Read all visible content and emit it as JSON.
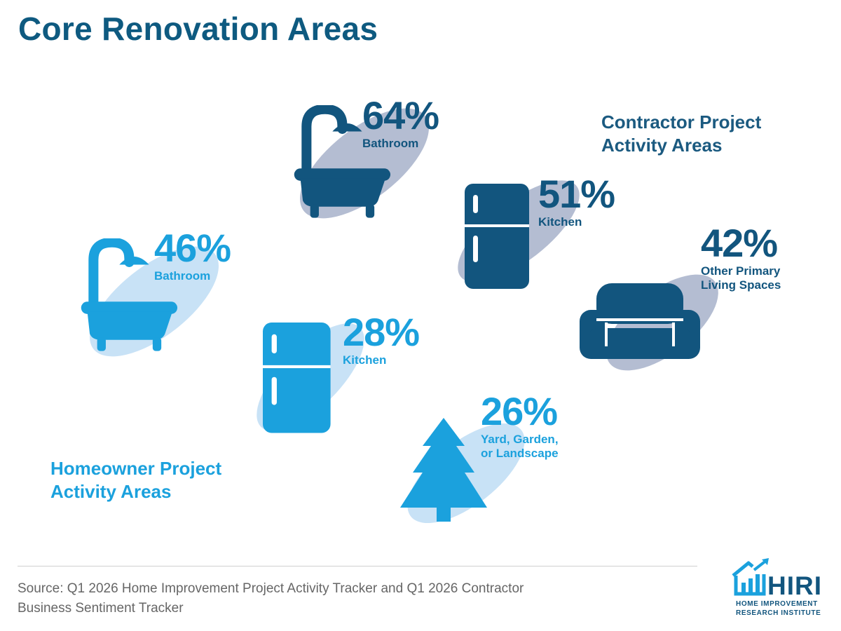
{
  "title": "Core Renovation Areas",
  "colors": {
    "contractor": "#12557e",
    "homeowner": "#1ba1dd",
    "contractor_shadow": "#b4bdd2",
    "homeowner_shadow": "#c8e2f6"
  },
  "chart_data": {
    "type": "table",
    "series": [
      {
        "name": "Contractor Project Activity Areas",
        "name_lines": [
          "Contractor Project",
          "Activity Areas"
        ],
        "items": [
          {
            "category": "Bathroom",
            "category_lines": [
              "Bathroom"
            ],
            "value": 64,
            "label": "64%",
            "icon": "bathtub-icon"
          },
          {
            "category": "Kitchen",
            "category_lines": [
              "Kitchen"
            ],
            "value": 51,
            "label": "51%",
            "icon": "refrigerator-icon"
          },
          {
            "category": "Other Primary Living Spaces",
            "category_lines": [
              "Other Primary",
              "Living Spaces"
            ],
            "value": 42,
            "label": "42%",
            "icon": "sofa-icon"
          }
        ]
      },
      {
        "name": "Homeowner Project Activity Areas",
        "name_lines": [
          "Homeowner Project",
          "Activity Areas"
        ],
        "items": [
          {
            "category": "Bathroom",
            "category_lines": [
              "Bathroom"
            ],
            "value": 46,
            "label": "46%",
            "icon": "bathtub-icon"
          },
          {
            "category": "Kitchen",
            "category_lines": [
              "Kitchen"
            ],
            "value": 28,
            "label": "28%",
            "icon": "refrigerator-icon"
          },
          {
            "category": "Yard, Garden, or Landscape",
            "category_lines": [
              "Yard, Garden,",
              "or Landscape"
            ],
            "value": 26,
            "label": "26%",
            "icon": "tree-icon"
          }
        ]
      }
    ]
  },
  "footer": {
    "source_lines": [
      "Source: Q1 2026 Home Improvement Project Activity Tracker and Q1 2026 Contractor",
      "Business Sentiment Tracker"
    ]
  },
  "logo": {
    "word": "HIRI",
    "sub_lines": [
      "HOME IMPROVEMENT",
      "RESEARCH INSTITUTE"
    ],
    "icon": "house-chart-icon"
  }
}
